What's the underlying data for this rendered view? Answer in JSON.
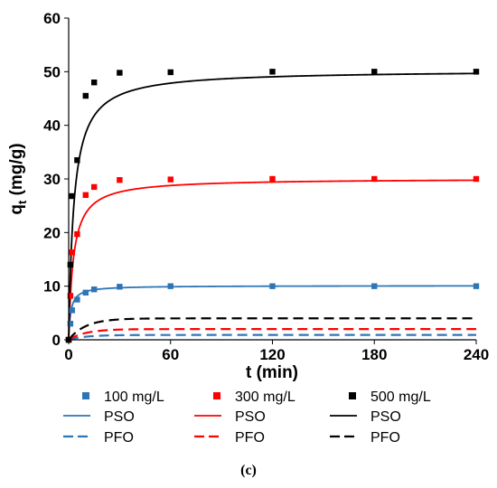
{
  "chart_data": {
    "type": "scatter",
    "xlabel": "t (min)",
    "ylabel_main": "q",
    "ylabel_sub": "t",
    "ylabel_unit": " (mg/g)",
    "xlim": [
      0,
      240
    ],
    "ylim": [
      0,
      60
    ],
    "xticks": [
      0,
      60,
      120,
      180,
      240
    ],
    "yticks": [
      0,
      10,
      20,
      30,
      40,
      50,
      60
    ],
    "grid": false,
    "legend_position": "bottom",
    "panel_label": "(c)",
    "series": [
      {
        "name": "100 mg/L",
        "kind": "points",
        "color": "#2E75B6",
        "x": [
          0,
          1,
          2,
          5,
          10,
          15,
          30,
          60,
          120,
          180,
          240
        ],
        "y": [
          0,
          3.0,
          5.5,
          7.5,
          8.8,
          9.4,
          9.9,
          10.0,
          10.0,
          10.0,
          10.0
        ]
      },
      {
        "name": "300 mg/L",
        "kind": "points",
        "color": "#FF0000",
        "x": [
          0,
          1,
          2,
          5,
          10,
          15,
          30,
          60,
          120,
          180,
          240
        ],
        "y": [
          0,
          8.2,
          16.3,
          19.7,
          27.0,
          28.5,
          29.8,
          29.9,
          30.0,
          30.0,
          30.0
        ]
      },
      {
        "name": "500 mg/L",
        "kind": "points",
        "color": "#000000",
        "x": [
          0,
          1,
          2,
          5,
          10,
          15,
          30,
          60,
          120,
          180,
          240
        ],
        "y": [
          0,
          14.0,
          26.8,
          33.5,
          45.5,
          48.0,
          49.8,
          49.9,
          50.0,
          50.0,
          50.0
        ]
      },
      {
        "name": "PSO",
        "kind": "pso",
        "color": "#2E75B6",
        "qe": 10.1,
        "k": 0.08
      },
      {
        "name": "PSO",
        "kind": "pso",
        "color": "#FF0000",
        "qe": 30.1,
        "k": 0.012
      },
      {
        "name": "PSO",
        "kind": "pso",
        "color": "#000000",
        "qe": 50.3,
        "k": 0.0065
      },
      {
        "name": "PFO",
        "kind": "pfo",
        "color": "#2E75B6",
        "qe": 0.9,
        "k": 0.1
      },
      {
        "name": "PFO",
        "kind": "pfo",
        "color": "#FF0000",
        "qe": 2.0,
        "k": 0.1
      },
      {
        "name": "PFO",
        "kind": "pfo",
        "color": "#000000",
        "qe": 4.0,
        "k": 0.1
      }
    ]
  }
}
